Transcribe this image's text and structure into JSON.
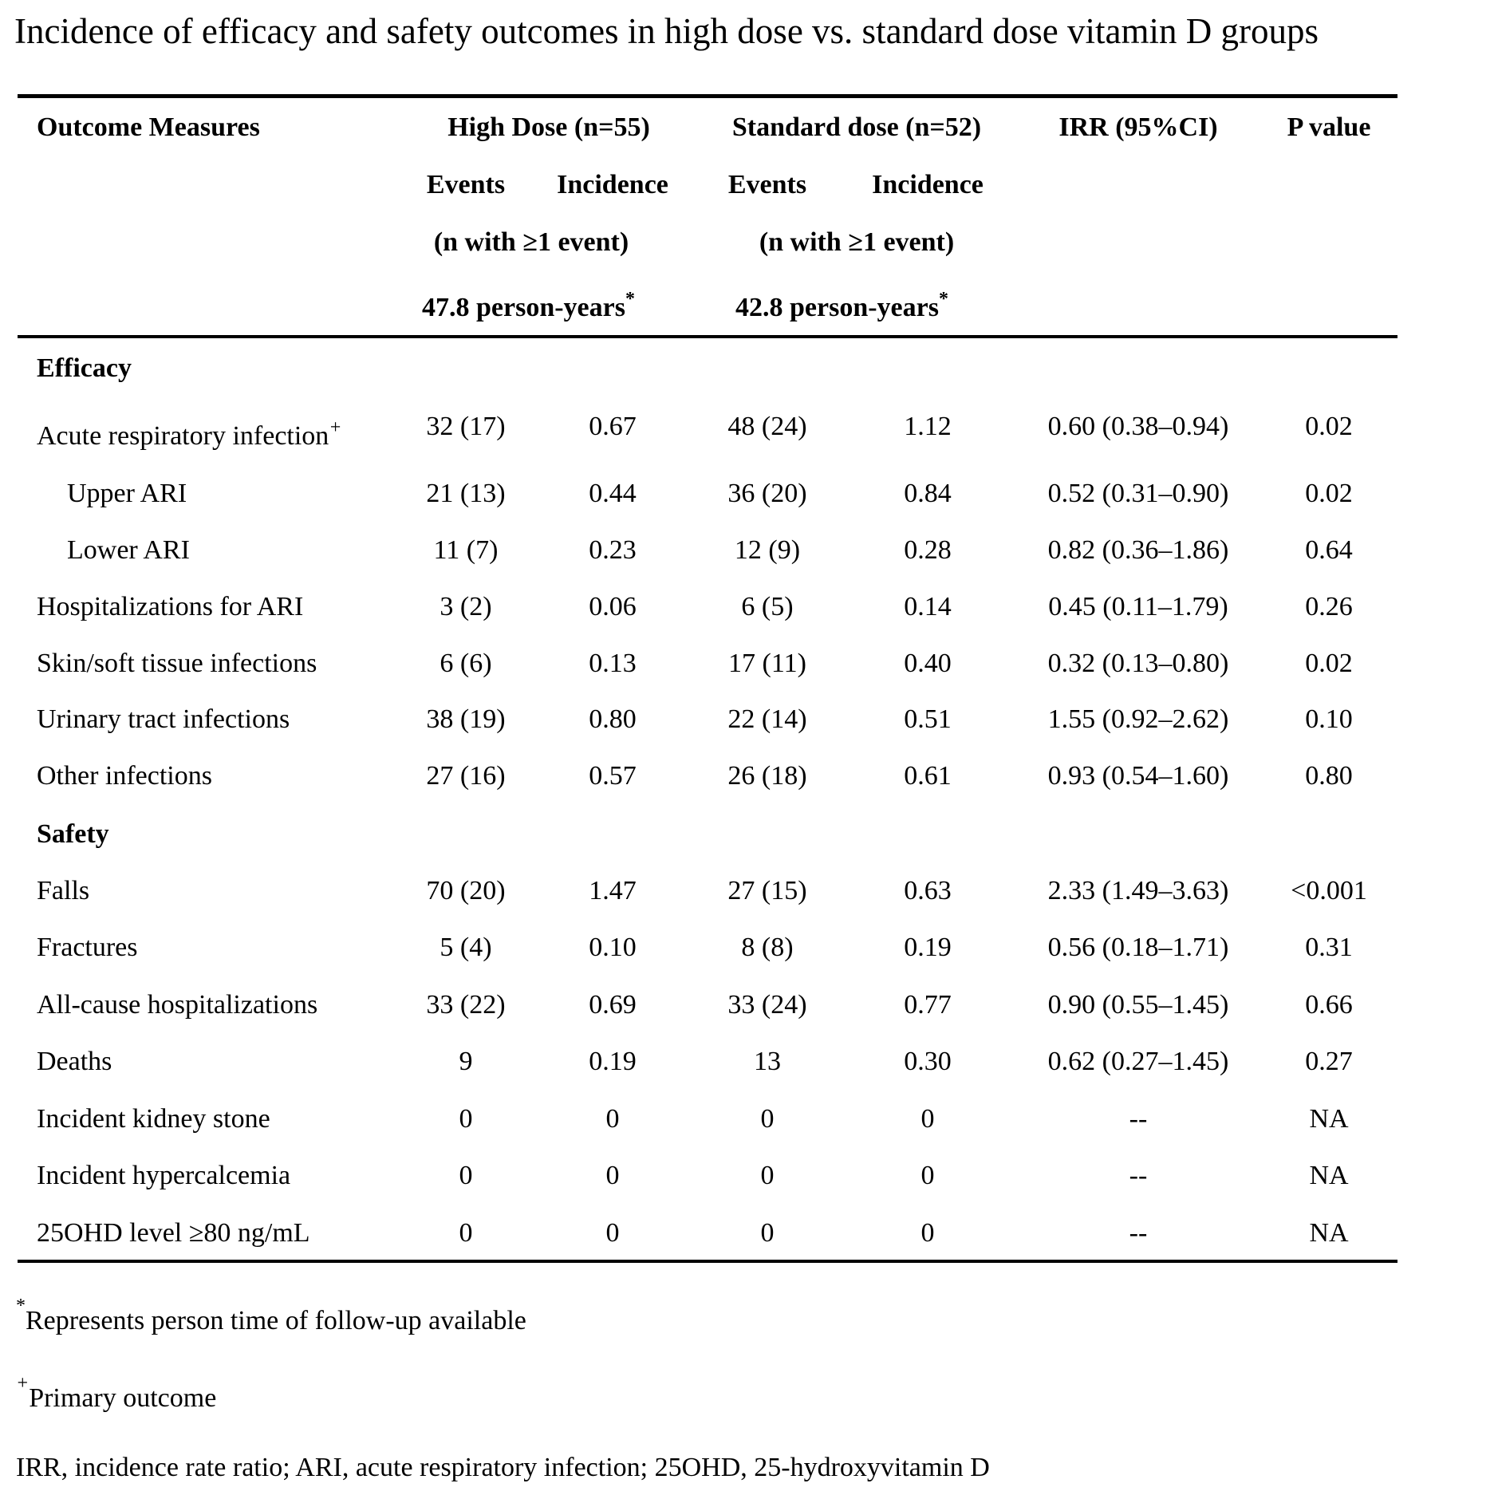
{
  "title": "Incidence of efficacy and safety outcomes in high dose vs. standard dose vitamin D groups",
  "header": {
    "outcome": "Outcome Measures",
    "high_dose": "High Dose (n=55)",
    "standard_dose": "Standard dose (n=52)",
    "irr": "IRR (95%CI)",
    "p_value": "P value",
    "events": "Events",
    "incidence": "Incidence",
    "n_with_event": "(n with ≥1 event)",
    "high_person_years": "47.8 person-years",
    "standard_person_years": "42.8 person-years",
    "asterisk": "*"
  },
  "sections": [
    {
      "label": "Efficacy",
      "rows": [
        {
          "outcome": "Acute respiratory infection",
          "mark": "+",
          "indent": false,
          "hd_events": "32 (17)",
          "hd_incidence": "0.67",
          "sd_events": "48 (24)",
          "sd_incidence": "1.12",
          "irr": "0.60 (0.38–0.94)",
          "p": "0.02"
        },
        {
          "outcome": "Upper ARI",
          "indent": true,
          "hd_events": "21 (13)",
          "hd_incidence": "0.44",
          "sd_events": "36 (20)",
          "sd_incidence": "0.84",
          "irr": "0.52 (0.31–0.90)",
          "p": "0.02"
        },
        {
          "outcome": "Lower ARI",
          "indent": true,
          "hd_events": "11 (7)",
          "hd_incidence": "0.23",
          "sd_events": "12 (9)",
          "sd_incidence": "0.28",
          "irr": "0.82 (0.36–1.86)",
          "p": "0.64"
        },
        {
          "outcome": "Hospitalizations for ARI",
          "indent": false,
          "hd_events": "3 (2)",
          "hd_incidence": "0.06",
          "sd_events": "6 (5)",
          "sd_incidence": "0.14",
          "irr": "0.45 (0.11–1.79)",
          "p": "0.26"
        },
        {
          "outcome": "Skin/soft tissue infections",
          "indent": false,
          "hd_events": "6 (6)",
          "hd_incidence": "0.13",
          "sd_events": "17 (11)",
          "sd_incidence": "0.40",
          "irr": "0.32 (0.13–0.80)",
          "p": "0.02"
        },
        {
          "outcome": "Urinary tract infections",
          "indent": false,
          "hd_events": "38 (19)",
          "hd_incidence": "0.80",
          "sd_events": "22 (14)",
          "sd_incidence": "0.51",
          "irr": "1.55 (0.92–2.62)",
          "p": "0.10"
        },
        {
          "outcome": "Other infections",
          "indent": false,
          "hd_events": "27 (16)",
          "hd_incidence": "0.57",
          "sd_events": "26 (18)",
          "sd_incidence": "0.61",
          "irr": "0.93 (0.54–1.60)",
          "p": "0.80"
        }
      ]
    },
    {
      "label": "Safety",
      "rows": [
        {
          "outcome": "Falls",
          "indent": false,
          "hd_events": "70 (20)",
          "hd_incidence": "1.47",
          "sd_events": "27 (15)",
          "sd_incidence": "0.63",
          "irr": "2.33 (1.49–3.63)",
          "p": "<0.001"
        },
        {
          "outcome": "Fractures",
          "indent": false,
          "hd_events": "5 (4)",
          "hd_incidence": "0.10",
          "sd_events": "8 (8)",
          "sd_incidence": "0.19",
          "irr": "0.56 (0.18–1.71)",
          "p": "0.31"
        },
        {
          "outcome": "All-cause hospitalizations",
          "indent": false,
          "hd_events": "33 (22)",
          "hd_incidence": "0.69",
          "sd_events": "33 (24)",
          "sd_incidence": "0.77",
          "irr": "0.90 (0.55–1.45)",
          "p": "0.66"
        },
        {
          "outcome": "Deaths",
          "indent": false,
          "hd_events": "9",
          "hd_incidence": "0.19",
          "sd_events": "13",
          "sd_incidence": "0.30",
          "irr": "0.62 (0.27–1.45)",
          "p": "0.27"
        },
        {
          "outcome": "Incident kidney stone",
          "indent": false,
          "hd_events": "0",
          "hd_incidence": "0",
          "sd_events": "0",
          "sd_incidence": "0",
          "irr": "--",
          "p": "NA"
        },
        {
          "outcome": "Incident hypercalcemia",
          "indent": false,
          "hd_events": "0",
          "hd_incidence": "0",
          "sd_events": "0",
          "sd_incidence": "0",
          "irr": "--",
          "p": "NA"
        },
        {
          "outcome": "25OHD level ≥80 ng/mL",
          "indent": false,
          "hd_events": "0",
          "hd_incidence": "0",
          "sd_events": "0",
          "sd_incidence": "0",
          "irr": "--",
          "p": "NA"
        }
      ]
    }
  ],
  "footnotes": {
    "asterisk_mark": "*",
    "asterisk_text": "Represents person time of follow-up available",
    "plus_mark": "+",
    "plus_text": "Primary outcome",
    "abbreviations": "IRR, incidence rate ratio; ARI, acute respiratory infection; 25OHD, 25-hydroxyvitamin D"
  }
}
